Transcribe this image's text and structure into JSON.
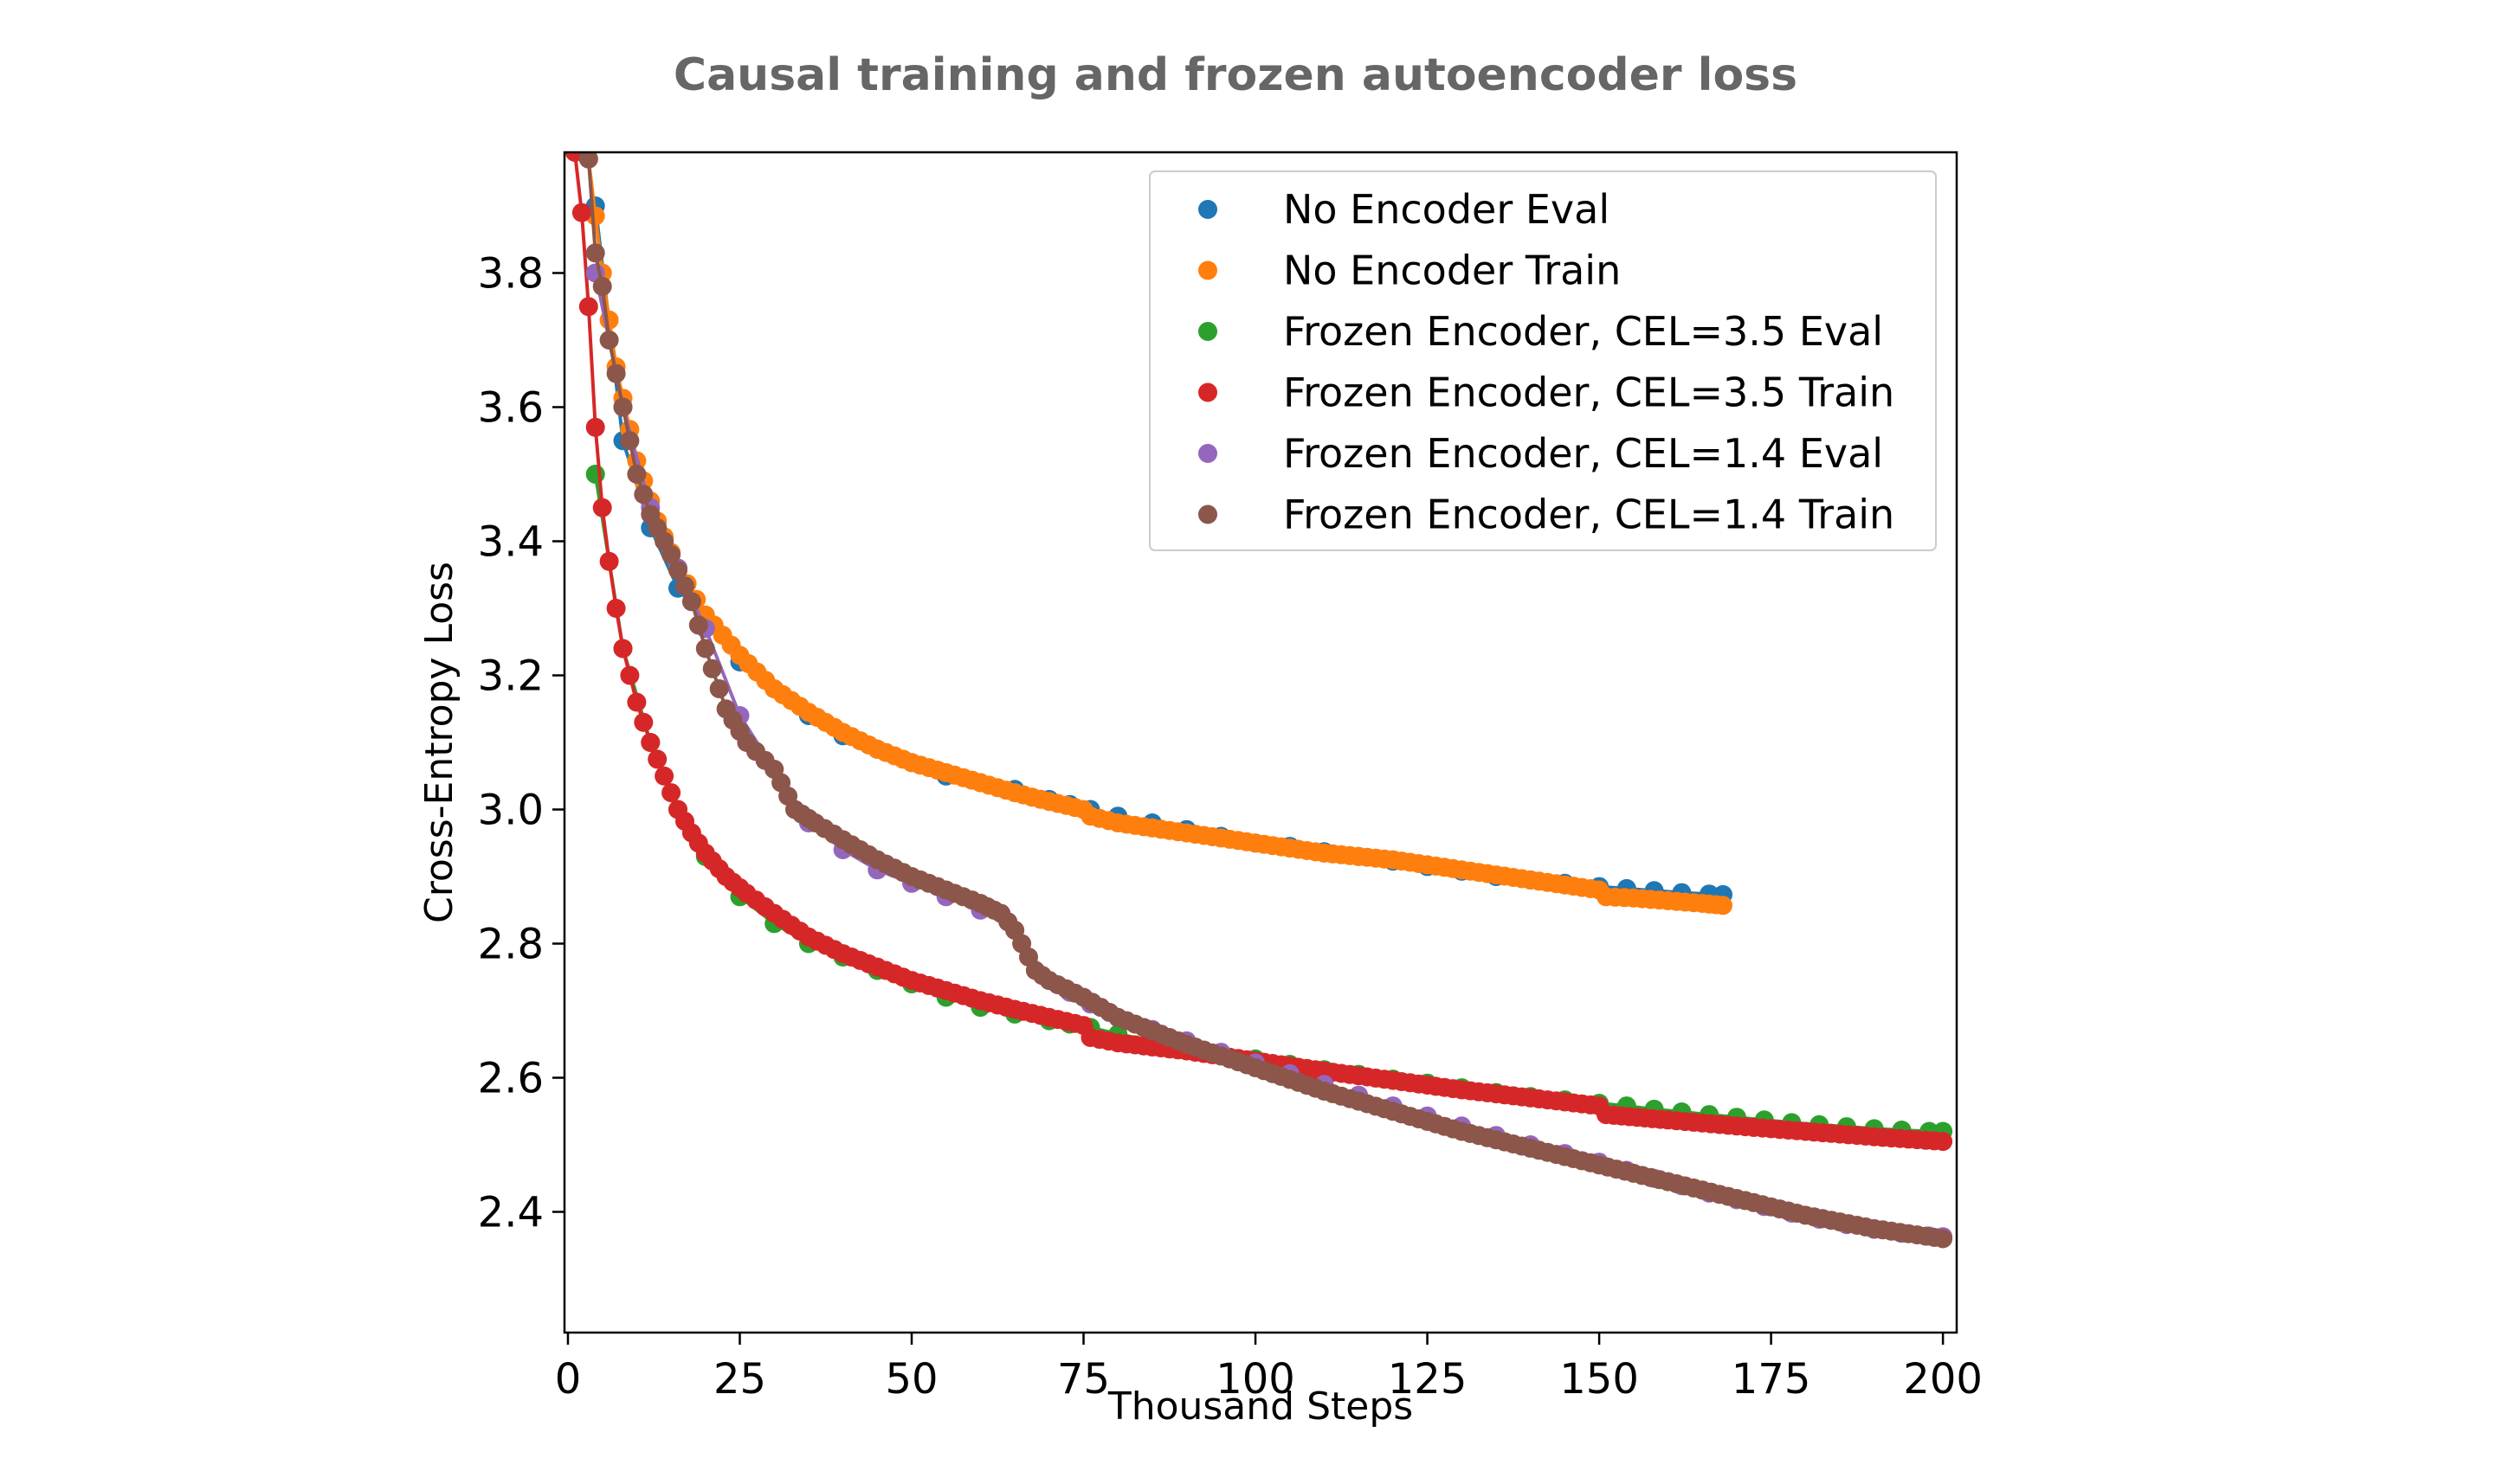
{
  "chart_data": {
    "type": "scatter",
    "title": "Causal training and frozen autoencoder loss",
    "xlabel": "Thousand Steps",
    "ylabel": "Cross-Entropy Loss",
    "xlim": [
      -0.5,
      202
    ],
    "ylim": [
      2.22,
      3.98
    ],
    "xticks": [
      0,
      25,
      50,
      75,
      100,
      125,
      150,
      175,
      200
    ],
    "yticks": [
      2.4,
      2.6,
      2.8,
      3.0,
      3.2,
      3.4,
      3.6,
      3.8
    ],
    "grid": false,
    "legend_position": "upper right",
    "series": [
      {
        "name": "No Encoder Eval",
        "color": "#1f77b4",
        "x": [
          4,
          8,
          12,
          16,
          20,
          25,
          30,
          35,
          40,
          45,
          50,
          55,
          60,
          65,
          70,
          76,
          80,
          85,
          90,
          95,
          100,
          105,
          110,
          115,
          120,
          125,
          130,
          135,
          140,
          145,
          150,
          154,
          158,
          162,
          166,
          168
        ],
        "y": [
          3.9,
          3.55,
          3.42,
          3.33,
          3.28,
          3.22,
          3.18,
          3.14,
          3.11,
          3.09,
          3.07,
          3.05,
          3.04,
          3.03,
          3.015,
          3.0,
          2.99,
          2.98,
          2.97,
          2.96,
          2.95,
          2.945,
          2.937,
          2.93,
          2.923,
          2.915,
          2.908,
          2.9,
          2.895,
          2.89,
          2.885,
          2.882,
          2.879,
          2.876,
          2.874,
          2.873
        ]
      },
      {
        "name": "No Encoder Train",
        "color": "#ff7f0e",
        "x": [
          3,
          5,
          7,
          10,
          13,
          16,
          20,
          25,
          30,
          35,
          40,
          45,
          50,
          55,
          60,
          65,
          70,
          75,
          76,
          80,
          90,
          100,
          110,
          120,
          130,
          140,
          150,
          151,
          155,
          160,
          165,
          168
        ],
        "y": [
          3.97,
          3.8,
          3.66,
          3.52,
          3.43,
          3.36,
          3.29,
          3.23,
          3.18,
          3.145,
          3.115,
          3.09,
          3.07,
          3.055,
          3.04,
          3.025,
          3.012,
          3.0,
          2.99,
          2.98,
          2.965,
          2.95,
          2.935,
          2.925,
          2.91,
          2.895,
          2.88,
          2.87,
          2.868,
          2.864,
          2.86,
          2.857
        ]
      },
      {
        "name": "Frozen Encoder, CEL=3.5 Eval",
        "color": "#2ca02c",
        "x": [
          4,
          8,
          12,
          16,
          20,
          25,
          30,
          35,
          40,
          45,
          50,
          55,
          60,
          65,
          70,
          76,
          80,
          85,
          90,
          95,
          100,
          105,
          110,
          115,
          120,
          125,
          130,
          135,
          140,
          145,
          150,
          154,
          158,
          162,
          166,
          170,
          174,
          178,
          182,
          186,
          190,
          194,
          198,
          200
        ],
        "y": [
          3.5,
          3.24,
          3.1,
          3.0,
          2.93,
          2.87,
          2.83,
          2.8,
          2.78,
          2.76,
          2.74,
          2.72,
          2.705,
          2.695,
          2.685,
          2.675,
          2.665,
          2.655,
          2.645,
          2.637,
          2.628,
          2.62,
          2.612,
          2.605,
          2.598,
          2.592,
          2.585,
          2.578,
          2.572,
          2.567,
          2.562,
          2.558,
          2.553,
          2.549,
          2.545,
          2.541,
          2.537,
          2.533,
          2.53,
          2.527,
          2.524,
          2.522,
          2.52,
          2.52
        ]
      },
      {
        "name": "Frozen Encoder, CEL=3.5 Train",
        "color": "#d62728",
        "x": [
          1,
          2,
          3,
          4,
          5,
          6,
          7,
          8,
          9,
          10,
          12,
          14,
          16,
          18,
          20,
          23,
          26,
          30,
          35,
          40,
          45,
          50,
          55,
          60,
          65,
          70,
          75,
          76,
          80,
          90,
          100,
          110,
          120,
          130,
          140,
          150,
          151,
          160,
          170,
          180,
          190,
          200
        ],
        "y": [
          3.98,
          3.89,
          3.75,
          3.57,
          3.45,
          3.37,
          3.3,
          3.24,
          3.2,
          3.16,
          3.1,
          3.05,
          3.0,
          2.965,
          2.935,
          2.9,
          2.875,
          2.845,
          2.81,
          2.785,
          2.765,
          2.745,
          2.73,
          2.715,
          2.702,
          2.69,
          2.678,
          2.66,
          2.652,
          2.64,
          2.625,
          2.61,
          2.596,
          2.582,
          2.57,
          2.558,
          2.545,
          2.537,
          2.528,
          2.52,
          2.512,
          2.505
        ]
      },
      {
        "name": "Frozen Encoder, CEL=1.4 Eval",
        "color": "#9467bd",
        "x": [
          4,
          8,
          12,
          16,
          20,
          25,
          30,
          35,
          40,
          45,
          50,
          55,
          60,
          65,
          70,
          76,
          80,
          85,
          90,
          95,
          100,
          105,
          110,
          115,
          120,
          125,
          130,
          135,
          140,
          145,
          150,
          154,
          158,
          162,
          166,
          170,
          174,
          178,
          182,
          186,
          190,
          194,
          198,
          200
        ],
        "y": [
          3.8,
          3.6,
          3.45,
          3.36,
          3.27,
          3.14,
          3.06,
          2.98,
          2.94,
          2.91,
          2.89,
          2.87,
          2.85,
          2.82,
          2.745,
          2.71,
          2.69,
          2.672,
          2.655,
          2.638,
          2.622,
          2.606,
          2.59,
          2.574,
          2.558,
          2.543,
          2.528,
          2.514,
          2.5,
          2.487,
          2.474,
          2.462,
          2.45,
          2.439,
          2.428,
          2.418,
          2.408,
          2.398,
          2.389,
          2.381,
          2.374,
          2.368,
          2.364,
          2.363
        ]
      },
      {
        "name": "Frozen Encoder, CEL=1.4 Train",
        "color": "#8c564b",
        "x": [
          3,
          4,
          5,
          6,
          8,
          10,
          12,
          15,
          18,
          20,
          23,
          26,
          30,
          33,
          36,
          40,
          45,
          50,
          55,
          60,
          63,
          65,
          67,
          68,
          70,
          75,
          80,
          90,
          100,
          110,
          120,
          130,
          140,
          150,
          160,
          170,
          180,
          190,
          200
        ],
        "y": [
          3.97,
          3.83,
          3.78,
          3.7,
          3.6,
          3.5,
          3.44,
          3.38,
          3.31,
          3.24,
          3.15,
          3.1,
          3.06,
          3.0,
          2.98,
          2.955,
          2.925,
          2.9,
          2.88,
          2.86,
          2.845,
          2.82,
          2.78,
          2.76,
          2.745,
          2.72,
          2.69,
          2.65,
          2.615,
          2.58,
          2.55,
          2.52,
          2.495,
          2.47,
          2.445,
          2.42,
          2.395,
          2.375,
          2.36
        ]
      }
    ]
  }
}
